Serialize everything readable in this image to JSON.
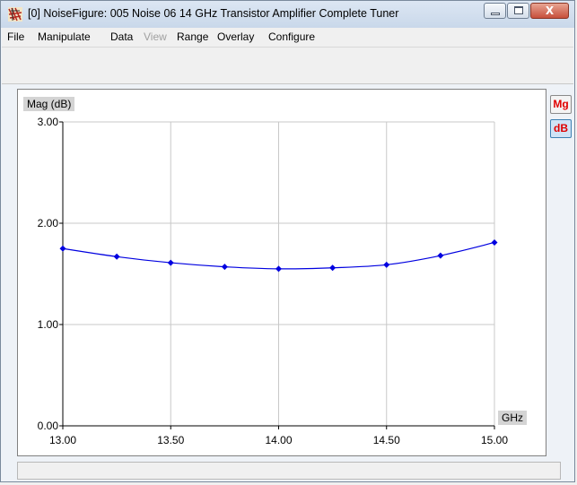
{
  "window": {
    "title": "[0] NoiseFigure: 005 Noise 06 14 GHz Transistor Amplifier Complete Tuner",
    "controls": {
      "close_glyph": "X"
    }
  },
  "menu": {
    "items": [
      {
        "label": "File",
        "enabled": true
      },
      {
        "label": "Manipulate",
        "enabled": true
      },
      {
        "label": "Data",
        "enabled": true
      },
      {
        "label": "View",
        "enabled": false
      },
      {
        "label": "Range",
        "enabled": true
      },
      {
        "label": "Overlay",
        "enabled": true
      },
      {
        "label": "Configure",
        "enabled": true
      }
    ]
  },
  "side_buttons": {
    "mg": "Mg",
    "db": "dB"
  },
  "colors": {
    "series": "#0000e0",
    "grid": "#c8c8c8",
    "accent_red": "#e00000"
  },
  "chart_data": {
    "type": "line",
    "ylabel": "Mag (dB)",
    "xlabel": "GHz",
    "xlim": [
      13.0,
      15.0
    ],
    "ylim": [
      0.0,
      3.0
    ],
    "grid": true,
    "x_ticks": [
      "13.00",
      "13.50",
      "14.00",
      "14.50",
      "15.00"
    ],
    "y_ticks": [
      "3.00",
      "2.00",
      "1.00",
      "0.00"
    ],
    "series": [
      {
        "x": [
          13.0,
          13.25,
          13.5,
          13.75,
          14.0,
          14.25,
          14.5,
          14.75,
          15.0
        ],
        "y": [
          1.75,
          1.67,
          1.61,
          1.57,
          1.55,
          1.56,
          1.59,
          1.68,
          1.81
        ]
      }
    ]
  }
}
